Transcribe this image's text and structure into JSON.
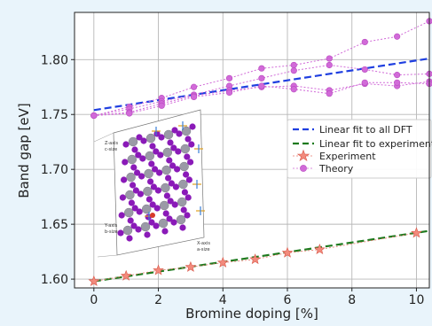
{
  "chart_data": {
    "type": "line",
    "xlabel": "Bromine doping [%]",
    "ylabel": "Band gap [eV]",
    "xlim": [
      -0.6,
      10.4
    ],
    "ylim": [
      1.592,
      1.843
    ],
    "xticks": [
      0,
      2,
      4,
      6,
      8,
      10
    ],
    "yticks": [
      1.6,
      1.65,
      1.7,
      1.75,
      1.8
    ],
    "xtick_labels": [
      "0",
      "2",
      "4",
      "6",
      "8",
      "10"
    ],
    "ytick_labels": [
      "1.60",
      "1.65",
      "1.70",
      "1.75",
      "1.80"
    ],
    "grid": true,
    "legend_position": "right",
    "series": [
      {
        "name": "Linear fit to all DFT",
        "style": "dashed-line",
        "color": "#1f3fe0",
        "x": [
          0,
          10.4
        ],
        "y": [
          1.754,
          1.801
        ]
      },
      {
        "name": "Linear fit to experiment",
        "style": "dashed-line",
        "color": "#1e7a1e",
        "x": [
          0,
          10.4
        ],
        "y": [
          1.598,
          1.644
        ]
      },
      {
        "name": "Experiment",
        "style": "star-markers",
        "color": "#e8786c",
        "x": [
          0,
          1,
          2,
          3,
          4,
          5,
          6,
          7,
          10
        ],
        "y": [
          1.598,
          1.603,
          1.608,
          1.611,
          1.615,
          1.618,
          1.624,
          1.627,
          1.642
        ]
      },
      {
        "name": "Theory",
        "style": "dotted-circle-markers",
        "color": "#d16ad8",
        "lines": [
          {
            "x": [
              0,
              1.1,
              2.1,
              3.1,
              4.2,
              5.2,
              6.2,
              7.3,
              8.4,
              9.4,
              10.4
            ],
            "y": [
              1.749,
              1.757,
              1.765,
              1.775,
              1.783,
              1.792,
              1.795,
              1.801,
              1.816,
              1.821,
              1.835
            ]
          },
          {
            "x": [
              0,
              1.1,
              2.1,
              3.1,
              4.2,
              5.2,
              6.2,
              7.3,
              8.4,
              9.4,
              10.4
            ],
            "y": [
              1.749,
              1.755,
              1.762,
              1.768,
              1.776,
              1.783,
              1.79,
              1.795,
              1.791,
              1.786,
              1.787
            ]
          },
          {
            "x": [
              0,
              1.1,
              2.1,
              3.1,
              4.2,
              5.2,
              6.2,
              7.3,
              8.4,
              9.4,
              10.4
            ],
            "y": [
              1.749,
              1.752,
              1.76,
              1.767,
              1.772,
              1.775,
              1.776,
              1.772,
              1.778,
              1.776,
              1.78
            ]
          },
          {
            "x": [
              0,
              1.1,
              2.1,
              3.1,
              4.2,
              5.2,
              6.2,
              7.3,
              8.4,
              9.4,
              10.4
            ],
            "y": [
              1.749,
              1.751,
              1.758,
              1.766,
              1.77,
              1.776,
              1.773,
              1.769,
              1.779,
              1.779,
              1.778
            ]
          }
        ]
      }
    ],
    "inset_labels": [
      "Z-axis",
      "c-size",
      "Y-axis",
      "b-size",
      "X-axis",
      "a-size"
    ],
    "colors": {
      "axis": "#222222",
      "grid": "#b8b8b8",
      "plot_bg": "#ffffff",
      "page_bg": "#e9f4fb",
      "atom_br": "#8a1ab8",
      "atom_pb": "#9a9aa6"
    }
  }
}
